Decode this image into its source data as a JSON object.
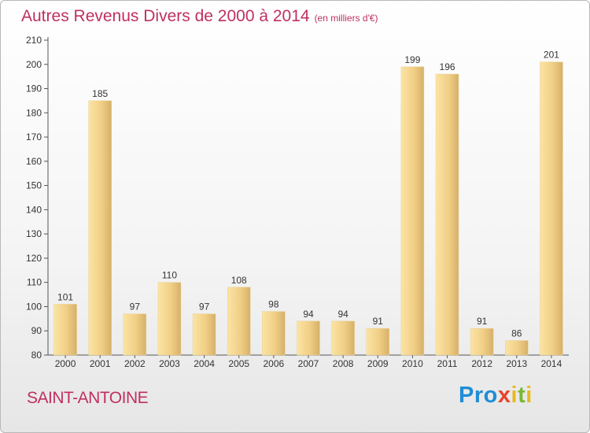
{
  "header": {
    "title": "Autres Revenus Divers de 2000 à 2014",
    "unit": "(en milliers d'€)"
  },
  "footer": {
    "place": "SAINT-ANTOINE",
    "logo": {
      "p1": "P",
      "r": "r",
      "o": "o",
      "x": "x",
      "i1": "i",
      "t": "t",
      "i2": "i"
    }
  },
  "colors": {
    "title": "#c0305f",
    "bar_light": "#fbe3a0",
    "bar_dark": "#d8b36a",
    "axis": "#555555",
    "grid": "#dddddd"
  },
  "chart_data": {
    "type": "bar",
    "title": "Autres Revenus Divers de 2000 à 2014",
    "subtitle": "(en milliers d'€)",
    "categories": [
      "2000",
      "2001",
      "2002",
      "2003",
      "2004",
      "2005",
      "2006",
      "2007",
      "2008",
      "2009",
      "2010",
      "2011",
      "2012",
      "2013",
      "2014"
    ],
    "values": [
      101,
      185,
      97,
      110,
      97,
      108,
      98,
      94,
      94,
      91,
      199,
      196,
      91,
      86,
      201
    ],
    "ylim": [
      80,
      210
    ],
    "yticks": [
      80,
      90,
      100,
      110,
      120,
      130,
      140,
      150,
      160,
      170,
      180,
      190,
      200,
      210
    ],
    "xlabel": "",
    "ylabel": "",
    "grid": false,
    "legend": "none"
  }
}
